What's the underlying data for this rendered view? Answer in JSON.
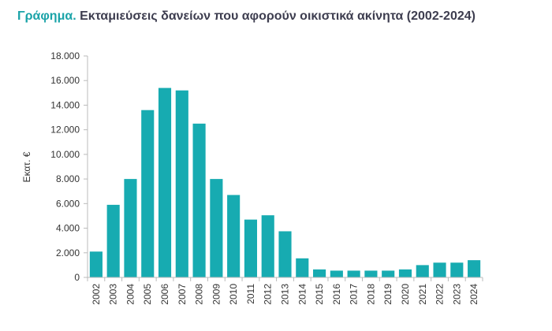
{
  "header": {
    "title_prefix": "Γράφημα.",
    "title_text": "Εκταμιεύσεις δανείων που αφορούν οικιστικά ακίνητα (2002-2024)"
  },
  "colors": {
    "bar": "#17abb1",
    "accent": "#1aa3a8",
    "title": "#3d3d4f",
    "axis": "#bbbbbb"
  },
  "chart_data": {
    "type": "bar",
    "title": "Εκταμιεύσεις δανείων που αφορούν οικιστικά ακίνητα (2002-2024)",
    "xlabel": "",
    "ylabel": "Εκατ. €",
    "ylim": [
      0,
      18000
    ],
    "yticks": [
      0,
      2000,
      4000,
      6000,
      8000,
      10000,
      12000,
      14000,
      16000,
      18000
    ],
    "ytick_labels": [
      "0",
      "2.000",
      "4.000",
      "6.000",
      "8.000",
      "10.000",
      "12.000",
      "14.000",
      "16.000",
      "18.000"
    ],
    "grid": false,
    "categories": [
      "2002",
      "2003",
      "2004",
      "2005",
      "2006",
      "2007",
      "2008",
      "2009",
      "2010",
      "2011",
      "2012",
      "2013",
      "2014",
      "2015",
      "2016",
      "2017",
      "2018",
      "2019",
      "2020",
      "2021",
      "2022",
      "2023",
      "2024"
    ],
    "values": [
      2100,
      5900,
      8000,
      13600,
      15400,
      15200,
      12500,
      8000,
      6700,
      4700,
      5050,
      3750,
      1550,
      650,
      550,
      550,
      550,
      550,
      650,
      1000,
      1200,
      1200,
      1400
    ]
  }
}
